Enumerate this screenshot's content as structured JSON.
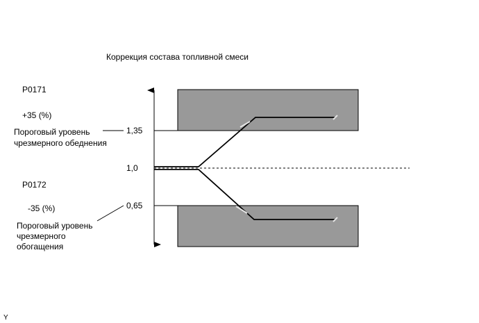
{
  "title": "Коррекция состава топливной смеси",
  "codes": {
    "lean": "P0171",
    "rich": "P0172"
  },
  "percents": {
    "lean": "+35 (%)",
    "rich": "-35 (%)"
  },
  "levels": {
    "upper": "1,35",
    "center": "1,0",
    "lower": "0,65"
  },
  "labels": {
    "lean_threshold": [
      "Пороговый уровень",
      "чрезмерного обеднения"
    ],
    "rich_threshold": [
      "Пороговый уровень",
      "чрезмерного",
      "обогащения"
    ]
  },
  "corner_mark": "Y",
  "colors": {
    "zone_fill": "#999999",
    "line": "#000000"
  }
}
